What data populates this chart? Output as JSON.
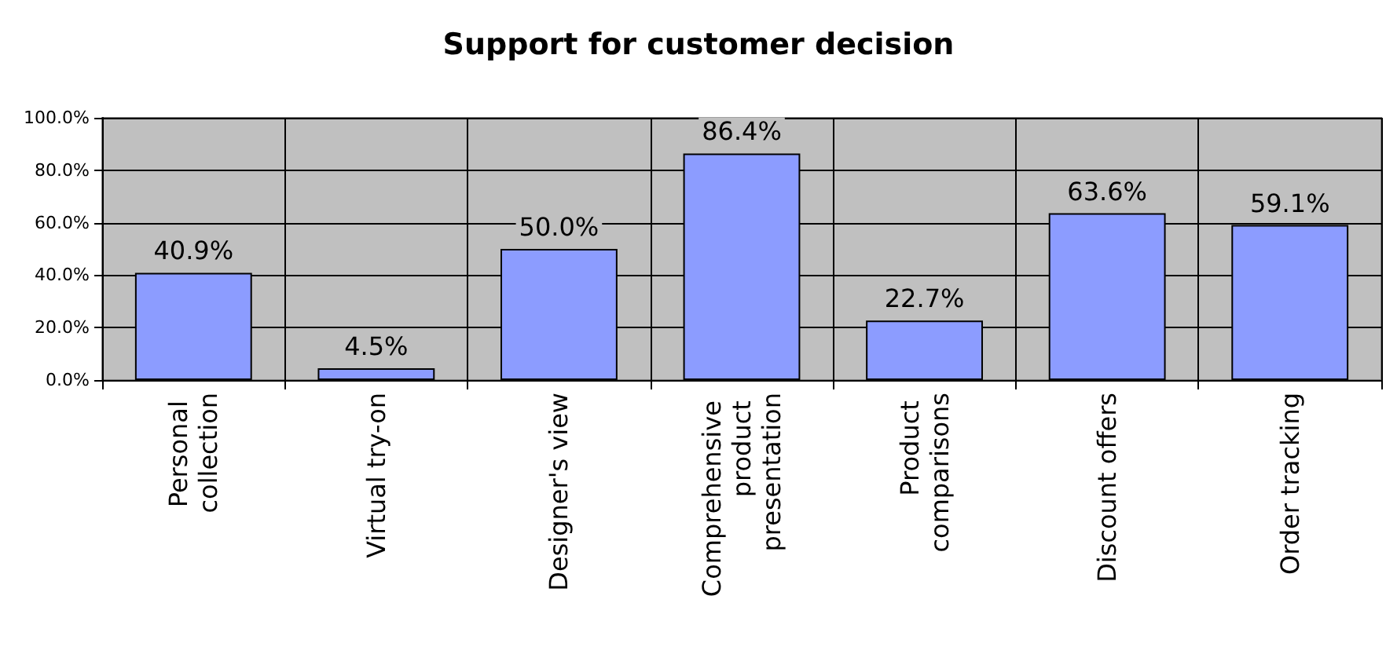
{
  "chart_data": {
    "type": "bar",
    "title": "Support for customer decision",
    "categories": [
      "Personal collection",
      "Virtual try-on",
      "Designer's view",
      "Comprehensive product presentation",
      "Product comparisons",
      "Discount offers",
      "Order tracking"
    ],
    "values": [
      40.9,
      4.5,
      50.0,
      86.4,
      22.7,
      63.6,
      59.1
    ],
    "value_labels": [
      "40.9%",
      "4.5%",
      "50.0%",
      "86.4%",
      "22.7%",
      "63.6%",
      "59.1%"
    ],
    "color": "#8c9cff",
    "ylim": [
      0,
      100
    ],
    "yticks": [
      {
        "value": 0,
        "label": "0.0%"
      },
      {
        "value": 20,
        "label": "20.0%"
      },
      {
        "value": 40,
        "label": "40.0%"
      },
      {
        "value": 60,
        "label": "60.0%"
      },
      {
        "value": 80,
        "label": "80.0%"
      },
      {
        "value": 100,
        "label": "100.0%"
      }
    ],
    "grid": true
  }
}
